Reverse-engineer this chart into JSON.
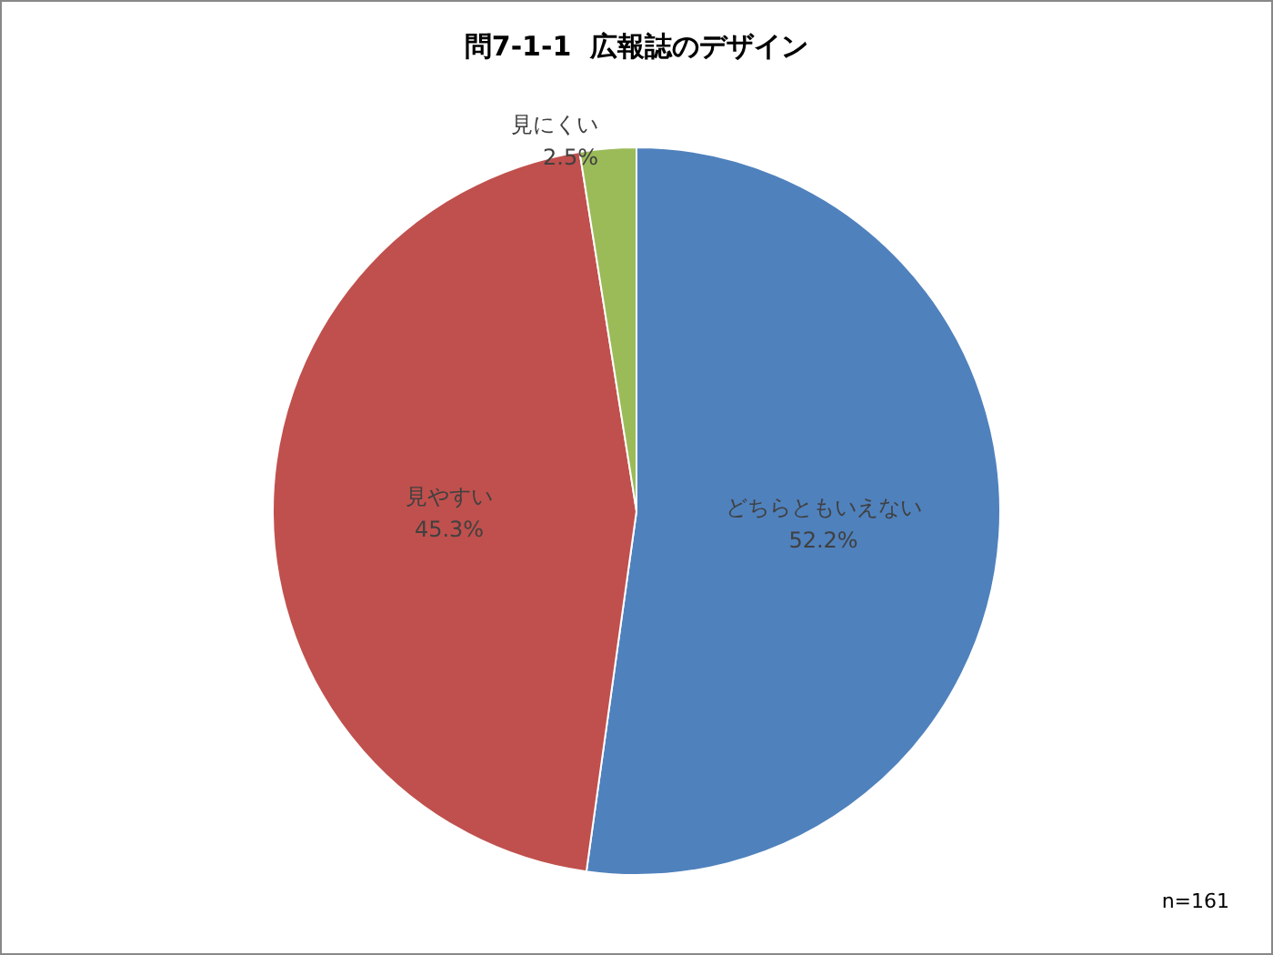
{
  "chart_data": {
    "type": "pie",
    "title": "問7-1-1  広報誌のデザイン",
    "categories": [
      "どちらともいえない",
      "見やすい",
      "見にくい"
    ],
    "values": [
      52.2,
      45.3,
      2.5
    ],
    "colors": [
      "#4f81bd",
      "#c0504d",
      "#9bbb59"
    ],
    "value_labels": [
      "52.2%",
      "45.3%",
      "2.5%"
    ],
    "annotations": [
      "n=161"
    ],
    "legend": false
  }
}
